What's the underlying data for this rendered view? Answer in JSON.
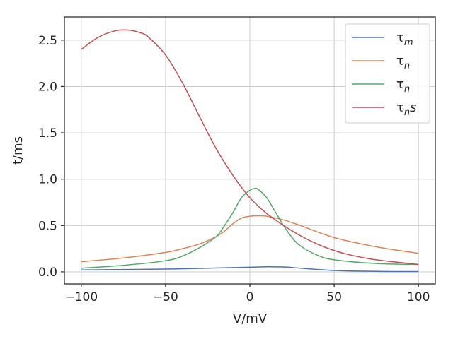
{
  "chart_data": {
    "type": "line",
    "xlabel": "V/mV",
    "ylabel": "t/ms",
    "xlim": [
      -110,
      110
    ],
    "ylim": [
      -0.13,
      2.75
    ],
    "xticks": [
      -100,
      -50,
      0,
      50,
      100
    ],
    "xtick_labels": [
      "−100",
      "−50",
      "0",
      "50",
      "100"
    ],
    "yticks": [
      0.0,
      0.5,
      1.0,
      1.5,
      2.0,
      2.5
    ],
    "ytick_labels": [
      "0.0",
      "0.5",
      "1.0",
      "1.5",
      "2.0",
      "2.5"
    ],
    "grid": true,
    "legend_position": "top-right",
    "series": [
      {
        "name": "τm",
        "base": "τ",
        "sub": "m",
        "suffix": "",
        "color": "#4c72b0",
        "x": [
          -100,
          -75,
          -50,
          -25,
          0,
          10,
          20,
          30,
          50,
          75,
          100
        ],
        "y": [
          0.02,
          0.025,
          0.03,
          0.04,
          0.05,
          0.055,
          0.053,
          0.04,
          0.015,
          0.005,
          0.003
        ]
      },
      {
        "name": "τn",
        "base": "τ",
        "sub": "n",
        "suffix": "",
        "color": "#dd8452",
        "x": [
          -100,
          -75,
          -50,
          -40,
          -30,
          -20,
          -15,
          -10,
          -5,
          0,
          5,
          10,
          20,
          30,
          50,
          75,
          100
        ],
        "y": [
          0.11,
          0.15,
          0.21,
          0.25,
          0.3,
          0.38,
          0.44,
          0.52,
          0.58,
          0.6,
          0.605,
          0.6,
          0.56,
          0.5,
          0.37,
          0.27,
          0.2
        ]
      },
      {
        "name": "τh",
        "base": "τ",
        "sub": "h",
        "suffix": "",
        "color": "#55a868",
        "x": [
          -100,
          -75,
          -50,
          -40,
          -30,
          -20,
          -15,
          -10,
          -5,
          0,
          3,
          5,
          10,
          15,
          20,
          25,
          30,
          40,
          50,
          75,
          100
        ],
        "y": [
          0.04,
          0.07,
          0.12,
          0.17,
          0.26,
          0.38,
          0.5,
          0.64,
          0.8,
          0.88,
          0.9,
          0.89,
          0.8,
          0.65,
          0.5,
          0.37,
          0.28,
          0.18,
          0.13,
          0.09,
          0.08
        ]
      },
      {
        "name": "τns",
        "base": "τ",
        "sub": "n",
        "suffix": "s",
        "color": "#c44e52",
        "x": [
          -100,
          -90,
          -80,
          -73,
          -65,
          -60,
          -50,
          -40,
          -30,
          -20,
          -10,
          0,
          10,
          20,
          30,
          40,
          50,
          60,
          75,
          100
        ],
        "y": [
          2.4,
          2.53,
          2.6,
          2.61,
          2.58,
          2.53,
          2.34,
          2.04,
          1.68,
          1.33,
          1.04,
          0.8,
          0.63,
          0.5,
          0.39,
          0.3,
          0.23,
          0.18,
          0.13,
          0.08
        ]
      }
    ]
  }
}
